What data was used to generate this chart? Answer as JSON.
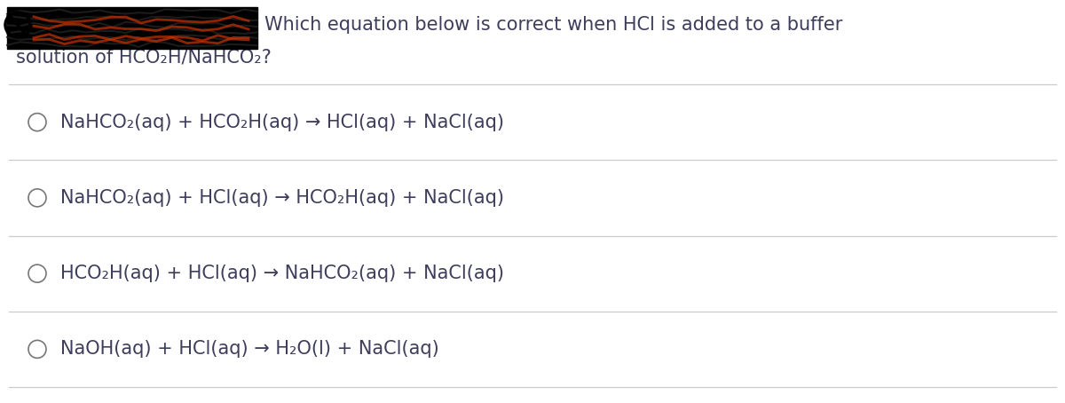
{
  "background_color": "#ffffff",
  "text_color": "#3d3d5c",
  "question_line1": "Which equation below is correct when HCl is added to a buffer",
  "question_line2": "solution of HCO₂H/NaHCO₂?",
  "options": [
    "NaHCO₂(aq) + HCO₂H(aq) → HCl(aq) + NaCl(aq)",
    "NaHCO₂(aq) + HCl(aq) → HCO₂H(aq) + NaCl(aq)",
    "HCO₂H(aq) + HCl(aq) → NaHCO₂(aq) + NaCl(aq)",
    "NaOH(aq) + HCl(aq) → H₂O(l) + NaCl(aq)"
  ],
  "font_size_question": 15,
  "font_size_options": 15,
  "fig_width": 12.0,
  "fig_height": 4.54,
  "dpi": 100
}
